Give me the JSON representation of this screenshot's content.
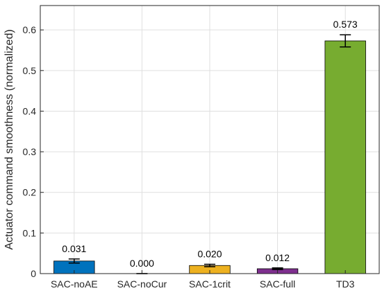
{
  "chart_data": {
    "type": "bar",
    "categories": [
      "SAC-noAE",
      "SAC-noCur",
      "SAC-1crit",
      "SAC-full",
      "TD3"
    ],
    "values": [
      0.031,
      0.0,
      0.02,
      0.012,
      0.573
    ],
    "value_labels": [
      "0.031",
      "0.000",
      "0.020",
      "0.012",
      "0.573"
    ],
    "error": [
      0.005,
      0.0,
      0.003,
      0.002,
      0.015
    ],
    "colors": [
      "#0072BD",
      "#7E2F8E",
      "#EDB120",
      "#7E2F8E",
      "#77AC30"
    ],
    "ylabel": "Actuator command smoothness (normalized)",
    "xlabel": "",
    "title": "",
    "ylim": [
      0,
      0.66
    ],
    "yticks": [
      0,
      0.1,
      0.2,
      0.3,
      0.4,
      0.5,
      0.6
    ],
    "ytick_labels": [
      "0",
      "0.1",
      "0.2",
      "0.3",
      "0.4",
      "0.5",
      "0.6"
    ],
    "grid": true,
    "legend": "none"
  }
}
